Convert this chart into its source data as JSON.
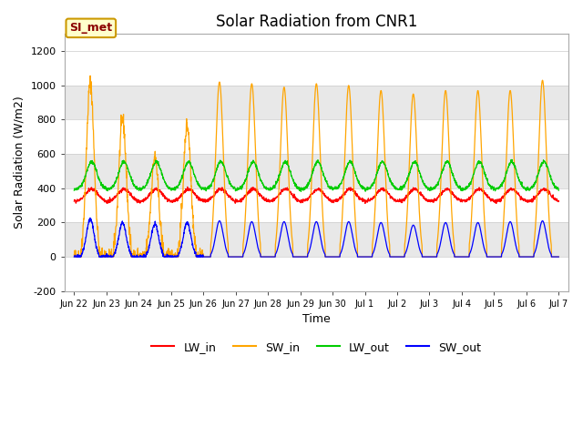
{
  "title": "Solar Radiation from CNR1",
  "xlabel": "Time",
  "ylabel": "Solar Radiation (W/m2)",
  "ylim": [
    -200,
    1300
  ],
  "yticks": [
    -200,
    0,
    200,
    400,
    600,
    800,
    1000,
    1200
  ],
  "legend_label": "SI_met",
  "series_colors": {
    "LW_in": "#ff0000",
    "SW_in": "#ffa500",
    "LW_out": "#00cc00",
    "SW_out": "#0000ff"
  },
  "background_color": "#ffffff",
  "plot_bg_color": "#ffffff",
  "grid_band_colors": [
    "#e8e8e8",
    "#ffffff"
  ],
  "title_fontsize": 12,
  "axis_fontsize": 9,
  "tick_fontsize": 8,
  "tick_labels": [
    "Jun 22",
    "Jun 23",
    "Jun 24",
    "Jun 25",
    "Jun 26",
    "Jun 27",
    "Jun 28",
    "Jun 29",
    "Jun 30",
    "Jul 1",
    "Jul 2",
    "Jul 3",
    "Jul 4",
    "Jul 5",
    "Jul 6",
    "Jul 7"
  ]
}
